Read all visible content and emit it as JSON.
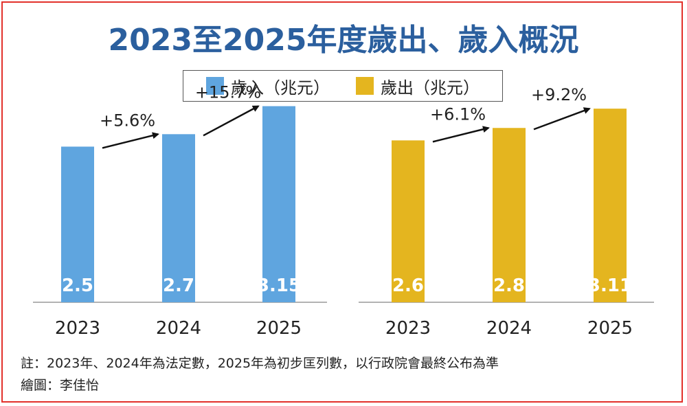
{
  "title": "2023至2025年度歲出、歲入概況",
  "legend": {
    "income_label": "歲入（兆元）",
    "expense_label": "歲出（兆元）"
  },
  "colors": {
    "income": "#5fa5df",
    "expense": "#e4b51f",
    "frame": "#e2302a",
    "title": "#2b5f9e"
  },
  "chart_data": [
    {
      "type": "bar",
      "title": "歲入（兆元）",
      "categories": [
        "2023",
        "2024",
        "2025"
      ],
      "values": [
        2.5,
        2.7,
        3.15
      ],
      "value_labels": [
        "2.5",
        "2.7",
        "3.15"
      ],
      "growth_annotations": [
        "+5.6%",
        "+15.7%"
      ],
      "ylim": [
        0,
        3.2
      ]
    },
    {
      "type": "bar",
      "title": "歲出（兆元）",
      "categories": [
        "2023",
        "2024",
        "2025"
      ],
      "values": [
        2.6,
        2.8,
        3.11
      ],
      "value_labels": [
        "2.6",
        "2.8",
        "3.11"
      ],
      "growth_annotations": [
        "+6.1%",
        "+9.2%"
      ],
      "ylim": [
        0,
        3.2
      ]
    }
  ],
  "notes": {
    "line1": "註：2023年、2024年為法定數，2025年為初步匡列數，以行政院會最終公布為準",
    "line2": "繪圖：李佳怡"
  }
}
